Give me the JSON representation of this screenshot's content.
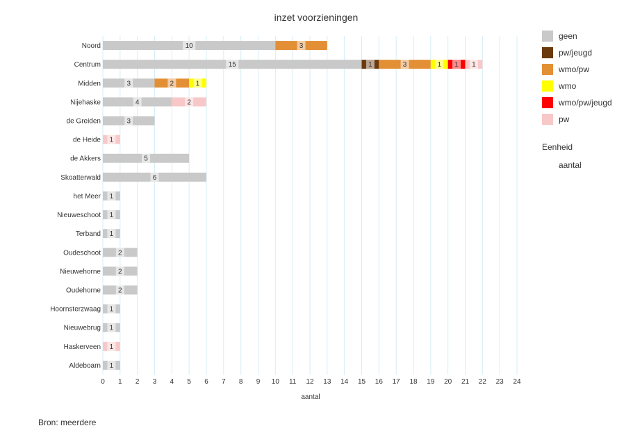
{
  "chart_data": {
    "type": "bar",
    "orientation": "horizontal",
    "stacked": true,
    "title": "inzet voorzieningen",
    "xlabel": "aantal",
    "ylabel": "",
    "xlim": [
      0,
      24
    ],
    "x_ticks": [
      0,
      1,
      2,
      3,
      4,
      5,
      6,
      7,
      8,
      9,
      10,
      11,
      12,
      13,
      14,
      15,
      16,
      17,
      18,
      19,
      20,
      21,
      22,
      23,
      24
    ],
    "grid": true,
    "legend_position": "right",
    "categories": [
      "Noord",
      "Centrum",
      "Midden",
      "Nijehaske",
      "de Greiden",
      "de Heide",
      "de Akkers",
      "Skoatterwald",
      "het Meer",
      "Nieuweschoot",
      "Terband",
      "Oudeschoot",
      "Nieuwehorne",
      "Oudehorne",
      "Hoornsterzwaag",
      "Nieuwebrug",
      "Haskerveen",
      "Aldeboarn"
    ],
    "series": [
      {
        "name": "geen",
        "color": "#c9c9c9",
        "values": [
          10,
          15,
          3,
          4,
          3,
          0,
          5,
          6,
          1,
          1,
          1,
          2,
          2,
          2,
          1,
          1,
          0,
          1
        ]
      },
      {
        "name": "pw/jeugd",
        "color": "#6b3a0c",
        "values": [
          0,
          1,
          0,
          0,
          0,
          0,
          0,
          0,
          0,
          0,
          0,
          0,
          0,
          0,
          0,
          0,
          0,
          0
        ]
      },
      {
        "name": "wmo/pw",
        "color": "#e38f35",
        "values": [
          3,
          3,
          2,
          0,
          0,
          0,
          0,
          0,
          0,
          0,
          0,
          0,
          0,
          0,
          0,
          0,
          0,
          0
        ]
      },
      {
        "name": "wmo",
        "color": "#ffff00",
        "values": [
          0,
          1,
          1,
          0,
          0,
          0,
          0,
          0,
          0,
          0,
          0,
          0,
          0,
          0,
          0,
          0,
          0,
          0
        ]
      },
      {
        "name": "wmo/pw/jeugd",
        "color": "#ff0000",
        "values": [
          0,
          1,
          0,
          0,
          0,
          0,
          0,
          0,
          0,
          0,
          0,
          0,
          0,
          0,
          0,
          0,
          0,
          0
        ]
      },
      {
        "name": "pw",
        "color": "#f8c8c8",
        "values": [
          0,
          1,
          0,
          2,
          0,
          1,
          0,
          0,
          0,
          0,
          0,
          0,
          0,
          0,
          0,
          0,
          1,
          0
        ]
      }
    ],
    "legend_extra": {
      "heading": "Eenheid",
      "item": "aantal"
    },
    "source": "Bron: meerdere"
  }
}
